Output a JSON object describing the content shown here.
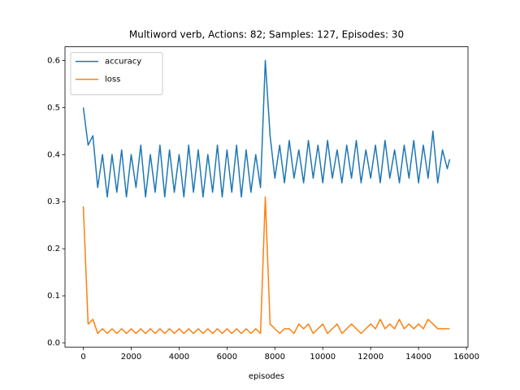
{
  "chart_data": {
    "type": "line",
    "title": "Multiword verb, Actions: 82; Samples: 127, Episodes: 30",
    "x_label": "episodes",
    "x": [
      0,
      200,
      400,
      600,
      800,
      1000,
      1200,
      1400,
      1600,
      1800,
      2000,
      2200,
      2400,
      2600,
      2800,
      3000,
      3200,
      3400,
      3600,
      3800,
      4000,
      4200,
      4400,
      4600,
      4800,
      5000,
      5200,
      5400,
      5600,
      5800,
      6000,
      6200,
      6400,
      6600,
      6800,
      7000,
      7200,
      7400,
      7600,
      7800,
      8000,
      8200,
      8400,
      8600,
      8800,
      9000,
      9200,
      9400,
      9600,
      9800,
      10000,
      10200,
      10400,
      10600,
      10800,
      11000,
      11200,
      11400,
      11600,
      11800,
      12000,
      12200,
      12400,
      12600,
      12800,
      13000,
      13200,
      13400,
      13600,
      13800,
      14000,
      14200,
      14400,
      14600,
      14800,
      15000,
      15200,
      15300
    ],
    "series": [
      {
        "name": "accuracy",
        "color": "#1f77b4",
        "values": [
          0.5,
          0.42,
          0.44,
          0.33,
          0.4,
          0.31,
          0.4,
          0.32,
          0.41,
          0.31,
          0.4,
          0.33,
          0.42,
          0.31,
          0.4,
          0.32,
          0.42,
          0.31,
          0.41,
          0.32,
          0.4,
          0.31,
          0.42,
          0.32,
          0.41,
          0.31,
          0.4,
          0.32,
          0.42,
          0.31,
          0.41,
          0.32,
          0.42,
          0.31,
          0.41,
          0.32,
          0.4,
          0.33,
          0.6,
          0.44,
          0.35,
          0.42,
          0.34,
          0.43,
          0.35,
          0.41,
          0.34,
          0.43,
          0.35,
          0.42,
          0.34,
          0.43,
          0.35,
          0.41,
          0.34,
          0.42,
          0.35,
          0.43,
          0.34,
          0.41,
          0.35,
          0.42,
          0.34,
          0.43,
          0.35,
          0.41,
          0.34,
          0.42,
          0.35,
          0.43,
          0.34,
          0.42,
          0.35,
          0.45,
          0.34,
          0.41,
          0.37,
          0.39
        ]
      },
      {
        "name": "loss",
        "color": "#ff7f0e",
        "values": [
          0.29,
          0.04,
          0.05,
          0.02,
          0.03,
          0.02,
          0.03,
          0.02,
          0.03,
          0.02,
          0.03,
          0.02,
          0.03,
          0.02,
          0.03,
          0.02,
          0.03,
          0.02,
          0.03,
          0.02,
          0.03,
          0.02,
          0.03,
          0.02,
          0.03,
          0.02,
          0.03,
          0.02,
          0.03,
          0.02,
          0.03,
          0.02,
          0.03,
          0.02,
          0.03,
          0.02,
          0.03,
          0.02,
          0.31,
          0.04,
          0.03,
          0.02,
          0.03,
          0.03,
          0.02,
          0.04,
          0.03,
          0.04,
          0.02,
          0.03,
          0.04,
          0.02,
          0.03,
          0.04,
          0.02,
          0.03,
          0.04,
          0.03,
          0.02,
          0.03,
          0.04,
          0.03,
          0.05,
          0.03,
          0.04,
          0.03,
          0.05,
          0.03,
          0.04,
          0.03,
          0.04,
          0.03,
          0.05,
          0.04,
          0.03,
          0.03,
          0.03,
          0.03
        ]
      }
    ],
    "xlim": [
      -765,
      16065
    ],
    "xticks": [
      0,
      2000,
      4000,
      6000,
      8000,
      10000,
      12000,
      14000,
      16000
    ],
    "ylim": [
      -0.009,
      0.629
    ],
    "yticks": [
      {
        "value": 0,
        "label": "0.0"
      },
      0.1,
      0.2,
      0.3,
      0.4,
      0.5,
      0.6
    ],
    "grid": false,
    "legend": "upper left"
  }
}
